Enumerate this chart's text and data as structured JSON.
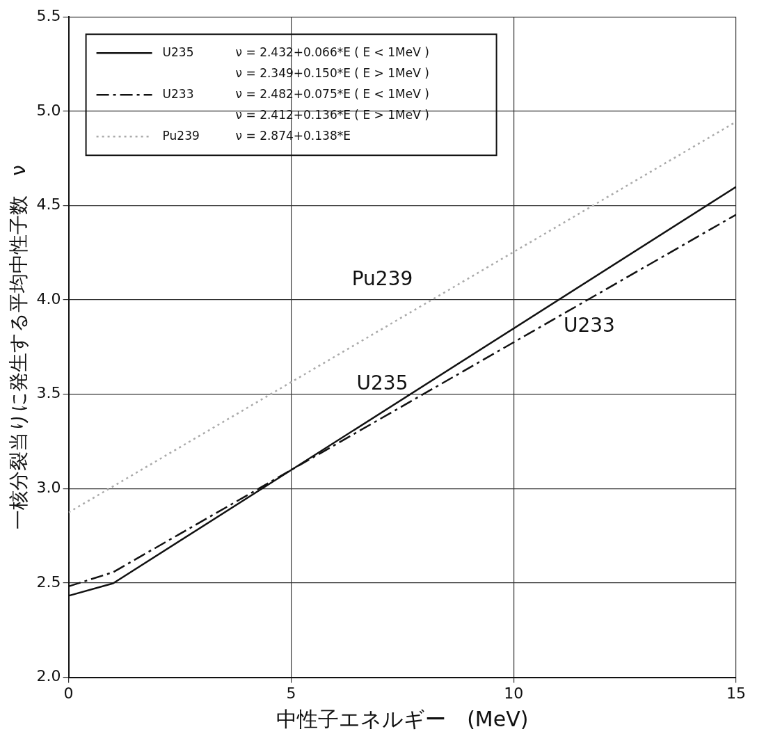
{
  "chart_data": {
    "type": "line",
    "xlabel": "中性子エネルギー　(MeV)",
    "ylabel": "一核分裂当りに発生する平均中性子数　ν",
    "xlim": [
      0,
      15
    ],
    "xticks": [
      0,
      5,
      10,
      15
    ],
    "ylim": [
      2,
      5.5
    ],
    "yticks": [
      {
        "value": 2,
        "label": "2.0"
      },
      {
        "value": 2.5,
        "label": "2.5"
      },
      {
        "value": 3,
        "label": "3.0"
      },
      {
        "value": 3.5,
        "label": "3.5"
      },
      {
        "value": 4,
        "label": "4.0"
      },
      {
        "value": 4.5,
        "label": "4.5"
      },
      {
        "value": 5,
        "label": "5.0"
      },
      {
        "value": 5.5,
        "label": "5.5"
      }
    ],
    "grid": true,
    "legend": "top left",
    "marker": "none",
    "series": [
      {
        "name": "U235",
        "color": "#111111",
        "line_style": "solid",
        "x": [
          0,
          1,
          15
        ],
        "values": [
          2.432,
          2.498,
          4.599
        ]
      },
      {
        "name": "U233",
        "color": "#111111",
        "line_style": "dashdot",
        "x": [
          0,
          1,
          15
        ],
        "values": [
          2.482,
          2.557,
          4.452
        ]
      },
      {
        "name": "Pu239",
        "color": "#aaaaaa",
        "line_style": "dotted",
        "x": [
          0,
          15
        ],
        "values": [
          2.874,
          4.944
        ]
      }
    ],
    "annotations": [
      "ν = 2.432+0.066*E ( E < 1MeV )",
      "ν = 2.349+0.150*E ( E > 1MeV )",
      "ν = 2.482+0.075*E ( E < 1MeV )",
      "ν = 2.412+0.136*E ( E > 1MeV )",
      "ν = 2.874+0.138*E"
    ]
  }
}
